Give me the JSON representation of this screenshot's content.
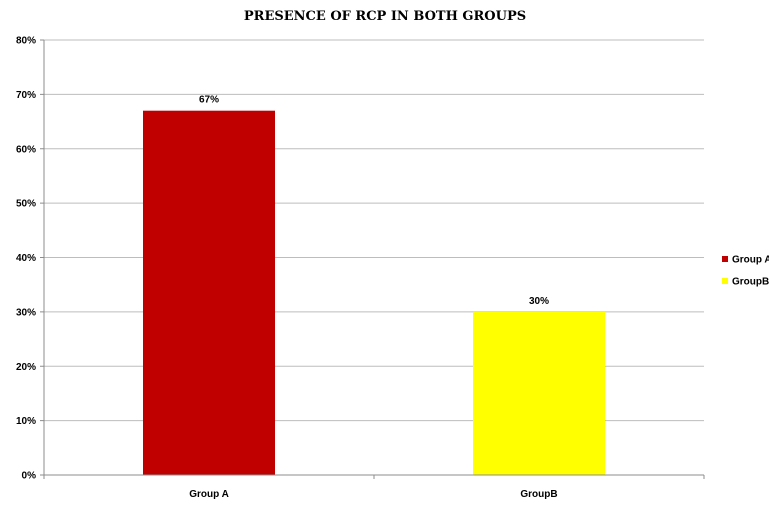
{
  "chart_data": {
    "type": "bar",
    "title": "PRESENCE OF RCP IN BOTH GROUPS",
    "xlabel": "",
    "ylabel": "",
    "categories": [
      "Group A",
      "GroupB"
    ],
    "values": [
      67,
      30
    ],
    "data_labels": [
      "67%",
      "30%"
    ],
    "colors": [
      "#c00000",
      "#ffff00"
    ],
    "ylim": [
      0,
      80
    ],
    "y_ticks": [
      0,
      10,
      20,
      30,
      40,
      50,
      60,
      70,
      80
    ],
    "y_tick_labels": [
      "0%",
      "10%",
      "20%",
      "30%",
      "40%",
      "50%",
      "60%",
      "70%",
      "80%"
    ],
    "grid": true,
    "legend": {
      "position": "right",
      "entries": [
        {
          "label": "Group A",
          "color": "#c00000"
        },
        {
          "label": "GroupB",
          "color": "#ffff00"
        }
      ]
    }
  }
}
